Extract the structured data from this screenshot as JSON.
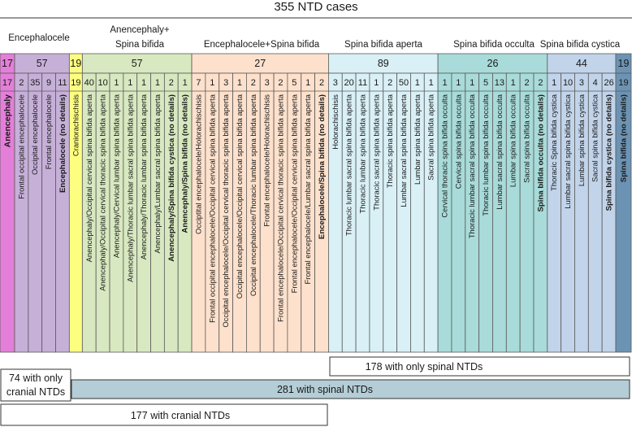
{
  "title": "355 NTD cases",
  "groups": [
    {
      "id": "anencephaly",
      "label": "",
      "count": "17",
      "color": "#e37fd9"
    },
    {
      "id": "encephalocele",
      "label": "Encephalocele",
      "count": "57",
      "color": "#c6b0d8"
    },
    {
      "id": "craniorachischisis",
      "label": "",
      "count": "19",
      "color": "#fdfd80"
    },
    {
      "id": "anencephaly-spina-bifida",
      "label": "Anencephaly+\nSpina bifida",
      "count": "57",
      "color": "#d8e8c0"
    },
    {
      "id": "encephalocele-spina-bifida",
      "label": "Encephalocele+Spina bifida",
      "count": "27",
      "color": "#fde1cc"
    },
    {
      "id": "spina-bifida-aperta",
      "label": "Spina bifida aperta",
      "count": "89",
      "color": "#d9f0f6"
    },
    {
      "id": "spina-bifida-occulta",
      "label": "Spina bifida occulta",
      "count": "26",
      "color": "#a8dbd9"
    },
    {
      "id": "spina-bifida-cystica",
      "label": "Spina bifida cystica",
      "count": "44",
      "color": "#c2d4ea"
    },
    {
      "id": "spina-bifida-nd",
      "label": "",
      "count": "19",
      "color": "#6c93b3"
    }
  ],
  "subcategories": [
    {
      "group": 0,
      "count": "17",
      "label": "Anencephaly",
      "style": "big"
    },
    {
      "group": 1,
      "count": "2",
      "label": "Frontal occipital encephalocele",
      "style": "normal"
    },
    {
      "group": 1,
      "count": "35",
      "label": "Occipital encephalocele",
      "style": "normal"
    },
    {
      "group": 1,
      "count": "9",
      "label": "Frontal encephalocele",
      "style": "normal"
    },
    {
      "group": 1,
      "count": "11",
      "label": "Encephalocele (no details)",
      "style": "bold"
    },
    {
      "group": 2,
      "count": "19",
      "label": "Craniorachischisis",
      "style": "normal"
    },
    {
      "group": 3,
      "count": "40",
      "label": "Anencephaly/Occipital cervical spina bifida aperta",
      "style": "normal"
    },
    {
      "group": 3,
      "count": "10",
      "label": "Anencephaly/Occipital cervical thoracic spina bifida aperta",
      "style": "normal"
    },
    {
      "group": 3,
      "count": "1",
      "label": "Anencephaly/Cervical lumbar spina bifida aperta",
      "style": "normal"
    },
    {
      "group": 3,
      "count": "1",
      "label": "Anencephaly/Thoracic lumbar sacral spina bifida aperta",
      "style": "normal"
    },
    {
      "group": 3,
      "count": "1",
      "label": "Anencephaly/Thoracic lumbar spina bifida aperta",
      "style": "normal"
    },
    {
      "group": 3,
      "count": "1",
      "label": "Anencephaly/Lumbar sacral spina bifida aperta",
      "style": "normal"
    },
    {
      "group": 3,
      "count": "2",
      "label": "Anencephaly/Spina bifida cystica (no details)",
      "style": "bold"
    },
    {
      "group": 3,
      "count": "1",
      "label": "Anencephaly/Spina bifida (no details)",
      "style": "bold"
    },
    {
      "group": 4,
      "count": "7",
      "label": "Occiptital encephalocele/Holorachischisis",
      "style": "normal"
    },
    {
      "group": 4,
      "count": "1",
      "label": "Frontal occipital encephalocele/Occipital cervical spina bifida aperta",
      "style": "normal"
    },
    {
      "group": 4,
      "count": "3",
      "label": "Occipital encephalocele/Occipital cervical thoracic spina bifida aperta",
      "style": "normal"
    },
    {
      "group": 4,
      "count": "1",
      "label": "Occipital encephalocele/Occipital cervical spina bifida aperta",
      "style": "normal"
    },
    {
      "group": 4,
      "count": "2",
      "label": "Occipital encephalocele/Thoracic lumbar spina bifida aperta",
      "style": "normal"
    },
    {
      "group": 4,
      "count": "3",
      "label": "Frontal encephalocele/Holorachischisis",
      "style": "normal"
    },
    {
      "group": 4,
      "count": "2",
      "label": "Frontal encephalocele/Occipital cervical thoracic spina bifida aperta",
      "style": "normal"
    },
    {
      "group": 4,
      "count": "5",
      "label": "Frontal encephalocele/Occipital cervical spina bifida aperta",
      "style": "normal"
    },
    {
      "group": 4,
      "count": "1",
      "label": "Frontal encephalocele/Lumbar sacral spina bifida aperta",
      "style": "normal"
    },
    {
      "group": 4,
      "count": "2",
      "label": "Encephalocele/Spina bifida (no details)",
      "style": "bold"
    },
    {
      "group": 5,
      "count": "3",
      "label": "Holorachischisis",
      "style": "normal"
    },
    {
      "group": 5,
      "count": "20",
      "label": "Thoracic lumbar sacral spina bifida aperta",
      "style": "normal"
    },
    {
      "group": 5,
      "count": "11",
      "label": "Thoracic lumbar spina bifida aperta",
      "style": "normal"
    },
    {
      "group": 5,
      "count": "1",
      "label": "Thoracic sacral spina bifida aperta",
      "style": "normal"
    },
    {
      "group": 5,
      "count": "2",
      "label": "Thoracic spina bifida aperta",
      "style": "normal"
    },
    {
      "group": 5,
      "count": "50",
      "label": "Lumbar sacral spina bifida aperta",
      "style": "normal"
    },
    {
      "group": 5,
      "count": "1",
      "label": "Lumbar spina bifida aperta",
      "style": "normal"
    },
    {
      "group": 5,
      "count": "1",
      "label": "Sacral spina bifida aperta",
      "style": "normal"
    },
    {
      "group": 6,
      "count": "1",
      "label": "Cervical thoracic spina bifida occulta",
      "style": "normal"
    },
    {
      "group": 6,
      "count": "1",
      "label": "Cervical spina bifida occulta",
      "style": "normal"
    },
    {
      "group": 6,
      "count": "1",
      "label": "Thoracic lumbar sacral spina bifida occulta",
      "style": "normal"
    },
    {
      "group": 6,
      "count": "5",
      "label": "Thoracic lumbar spina bifida occulta",
      "style": "normal"
    },
    {
      "group": 6,
      "count": "13",
      "label": "Lumbar sacral spina bifida occulta",
      "style": "normal"
    },
    {
      "group": 6,
      "count": "1",
      "label": "Lumbar spina bifida occulta",
      "style": "normal"
    },
    {
      "group": 6,
      "count": "2",
      "label": "Sacral spina bifida occulta",
      "style": "normal"
    },
    {
      "group": 6,
      "count": "2",
      "label": "Spina bifida occulta (no details)",
      "style": "bold"
    },
    {
      "group": 7,
      "count": "1",
      "label": "Thoracic Spina bifida cystica",
      "style": "normal"
    },
    {
      "group": 7,
      "count": "10",
      "label": "Lumbar sacral spina bifida cystica",
      "style": "normal"
    },
    {
      "group": 7,
      "count": "3",
      "label": "Lumbar spina bifida cystica",
      "style": "normal"
    },
    {
      "group": 7,
      "count": "4",
      "label": "Sacral spina bifida cystica",
      "style": "normal"
    },
    {
      "group": 7,
      "count": "26",
      "label": "Spina bifida cystica (no details)",
      "style": "bold"
    },
    {
      "group": 8,
      "count": "19",
      "label": "Spina bifida (no details)",
      "style": "bold"
    }
  ],
  "summaries": {
    "only_spinal": {
      "label": "178 with only spinal NTDs",
      "fill": "#ffffff"
    },
    "only_cranial": {
      "label": "74 with only cranial NTDs",
      "fill": "#ffffff"
    },
    "spinal": {
      "label": "281 with spinal NTDs",
      "fill": "#b4cdd6"
    },
    "cranial": {
      "label": "177 with cranial NTDs",
      "fill": "#ffffff"
    }
  }
}
